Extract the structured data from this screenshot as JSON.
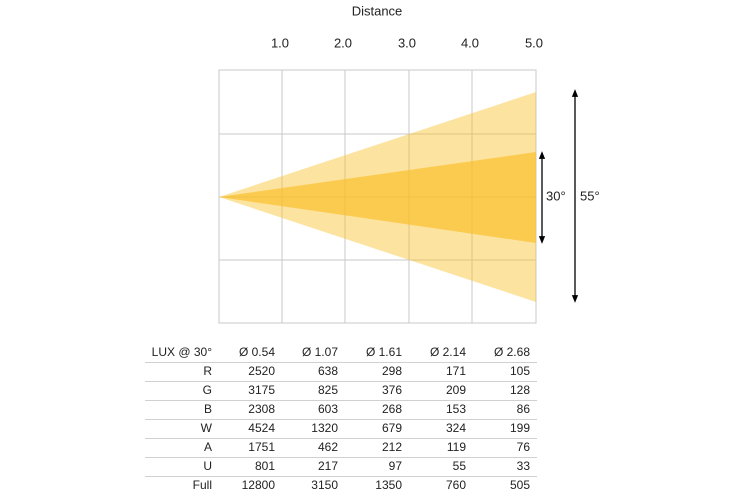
{
  "header": {
    "title": "Distance",
    "distances": [
      "1.0",
      "2.0",
      "3.0",
      "4.0",
      "5.0"
    ]
  },
  "diagram": {
    "beams": [
      {
        "label": "30°"
      },
      {
        "label": "55°"
      }
    ]
  },
  "table": {
    "columns": [
      "LUX @ 30°",
      "Ø 0.54",
      "Ø 1.07",
      "Ø 1.61",
      "Ø 2.14",
      "Ø 2.68"
    ],
    "rows": [
      [
        "R",
        2520,
        638,
        298,
        171,
        105
      ],
      [
        "G",
        3175,
        825,
        376,
        209,
        128
      ],
      [
        "B",
        2308,
        603,
        268,
        153,
        86
      ],
      [
        "W",
        4524,
        1320,
        679,
        324,
        199
      ],
      [
        "A",
        1751,
        462,
        212,
        119,
        76
      ],
      [
        "U",
        801,
        217,
        97,
        55,
        33
      ],
      [
        "Full",
        12800,
        3150,
        1350,
        760,
        505
      ]
    ]
  }
}
